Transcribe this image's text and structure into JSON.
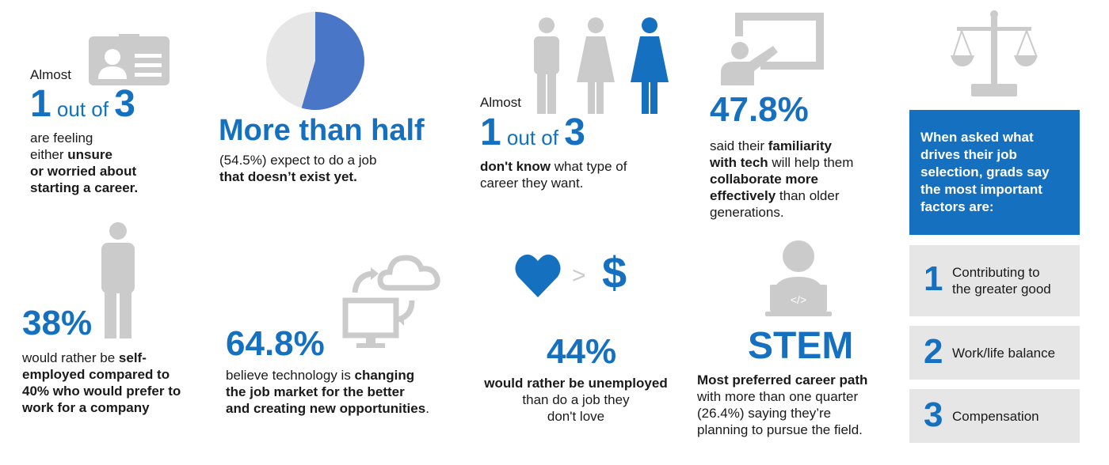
{
  "colors": {
    "accent": "#1570C0",
    "icon_gray": "#CBCBCB",
    "panel_gray": "#E6E6E6",
    "pie_gray": "#E6E6E6"
  },
  "s1": {
    "almost": "Almost",
    "num1": "1",
    "out_of": " out of ",
    "num3": "3",
    "text_a": "are feeling",
    "text_b": "either ",
    "text_b_bold": "unsure",
    "text_c": "or worried about",
    "text_d": "starting a career.",
    "icon": "id-badge-icon"
  },
  "s2": {
    "headline": "More than half",
    "text_a": "(54.5%) expect to do a job",
    "text_b": "that doesn’t exist yet.",
    "pie_value_pct": 54.5,
    "icon": "pie-icon"
  },
  "s3": {
    "almost": "Almost",
    "num1": "1",
    "out_of": " out of ",
    "num3": "3",
    "text_a_bold": "don't know",
    "text_a": " what type of",
    "text_b": "career they want.",
    "icon": "people-icon"
  },
  "s4": {
    "value": "47.8%",
    "text_a": "said their ",
    "text_a_bold": "familiarity",
    "text_b_bold": "with tech",
    "text_b": " will help them",
    "text_c_bold": "collaborate more",
    "text_d_bold": "effectively",
    "text_d": " than older",
    "text_e": "generations.",
    "icon": "presenter-icon"
  },
  "s5": {
    "panel_line1": "When asked what",
    "panel_line2": "drives their job",
    "panel_line3": "selection, grads say",
    "panel_line4": "the most important",
    "panel_line5": "factors are:",
    "icon": "scales-icon",
    "factors": [
      {
        "rank": "1",
        "label_a": "Contributing to",
        "label_b": "the greater good"
      },
      {
        "rank": "2",
        "label_a": "Work/life balance",
        "label_b": ""
      },
      {
        "rank": "3",
        "label_a": "Compensation",
        "label_b": ""
      }
    ]
  },
  "s6": {
    "value": "38%",
    "text_a": "would rather be ",
    "text_a_bold": "self-",
    "text_b_bold": "employed compared to",
    "text_c_bold": "40% who would prefer to",
    "text_d_bold": "work for a company",
    "icon": "person-icon"
  },
  "s7": {
    "value": "64.8%",
    "text_a": "believe technology is ",
    "text_a_bold": "changing",
    "text_b_bold": "the job market for the better",
    "text_c_bold": "and creating new opportunities",
    "text_c": ".",
    "icon": "cloud-sync-icon"
  },
  "s8": {
    "gt": ">",
    "dollar": "$",
    "value": "44%",
    "text_a_bold": "would rather be unemployed",
    "text_b": "than do a job they",
    "text_c": "don't love",
    "icon": "heart-icon"
  },
  "s9": {
    "value": "STEM",
    "text_a_bold": "Most preferred career path",
    "text_b": "with more than one quarter",
    "text_c": "(26.4%) saying they’re",
    "text_d": "planning to pursue the field.",
    "icon": "laptop-user-icon"
  }
}
